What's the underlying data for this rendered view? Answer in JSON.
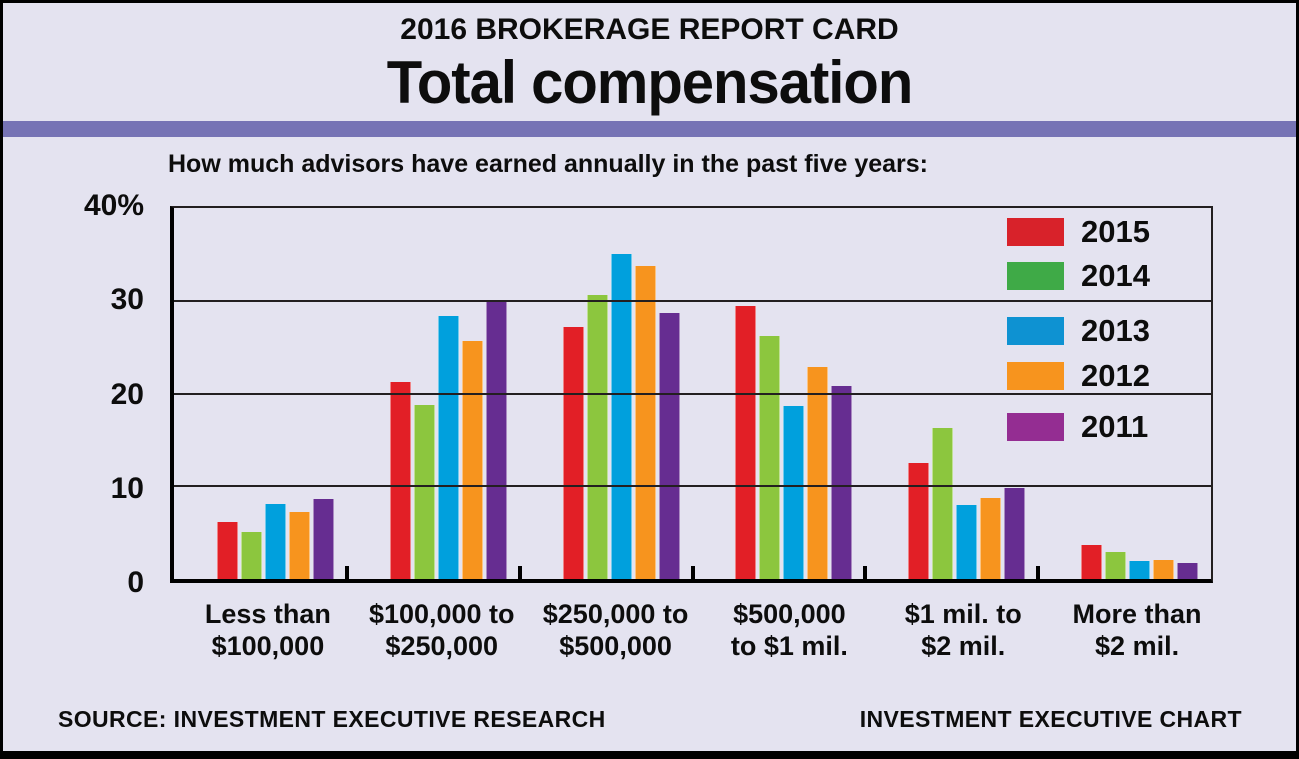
{
  "header": {
    "kicker": "2016 BROKERAGE REPORT CARD",
    "title": "Total compensation"
  },
  "subtitle": "How much advisors have earned annually in the past five years:",
  "footer": {
    "source": "SOURCE: INVESTMENT EXECUTIVE RESEARCH",
    "credit": "INVESTMENT EXECUTIVE CHART"
  },
  "colors": {
    "background": "#e4e3f0",
    "band": "#7673b5",
    "frame": "#000000",
    "gridline": "#231f20"
  },
  "chart_data": {
    "type": "bar",
    "title": "Total compensation",
    "subtitle": "How much advisors have earned annually in the past five years:",
    "xlabel": "",
    "ylabel": "",
    "ylim": [
      0,
      40
    ],
    "grid": "horizontal",
    "legend_position": "inside-top-right",
    "yticks": [
      {
        "value": 40,
        "label": "40%"
      },
      {
        "value": 30,
        "label": "30"
      },
      {
        "value": 20,
        "label": "20"
      },
      {
        "value": 10,
        "label": "10"
      },
      {
        "value": 0,
        "label": "0"
      }
    ],
    "categories": [
      [
        "Less than",
        "$100,000"
      ],
      [
        "$100,000 to",
        "$250,000"
      ],
      [
        "$250,000 to",
        "$500,000"
      ],
      [
        "$500,000",
        "to $1 mil."
      ],
      [
        "$1 mil. to",
        "$2 mil."
      ],
      [
        "More than",
        "$2 mil."
      ]
    ],
    "series": [
      {
        "name": "2015",
        "color": "#e21f26",
        "legend_color": "#d8222a",
        "values": [
          6.2,
          21.2,
          27.2,
          29.4,
          12.5,
          3.7
        ]
      },
      {
        "name": "2014",
        "color": "#8cc63e",
        "legend_color": "#3faa47",
        "values": [
          5.1,
          18.8,
          30.6,
          26.2,
          16.3,
          2.9
        ]
      },
      {
        "name": "2013",
        "color": "#00a0dd",
        "legend_color": "#0e92d2",
        "values": [
          8.1,
          28.4,
          35.0,
          18.7,
          8.0,
          1.9
        ]
      },
      {
        "name": "2012",
        "color": "#f7941e",
        "legend_color": "#f7941e",
        "values": [
          7.2,
          25.7,
          33.8,
          22.9,
          8.7,
          2.0
        ]
      },
      {
        "name": "2011",
        "color": "#662d91",
        "legend_color": "#942d92",
        "values": [
          8.6,
          30.1,
          28.7,
          20.8,
          9.8,
          1.7
        ]
      }
    ]
  }
}
